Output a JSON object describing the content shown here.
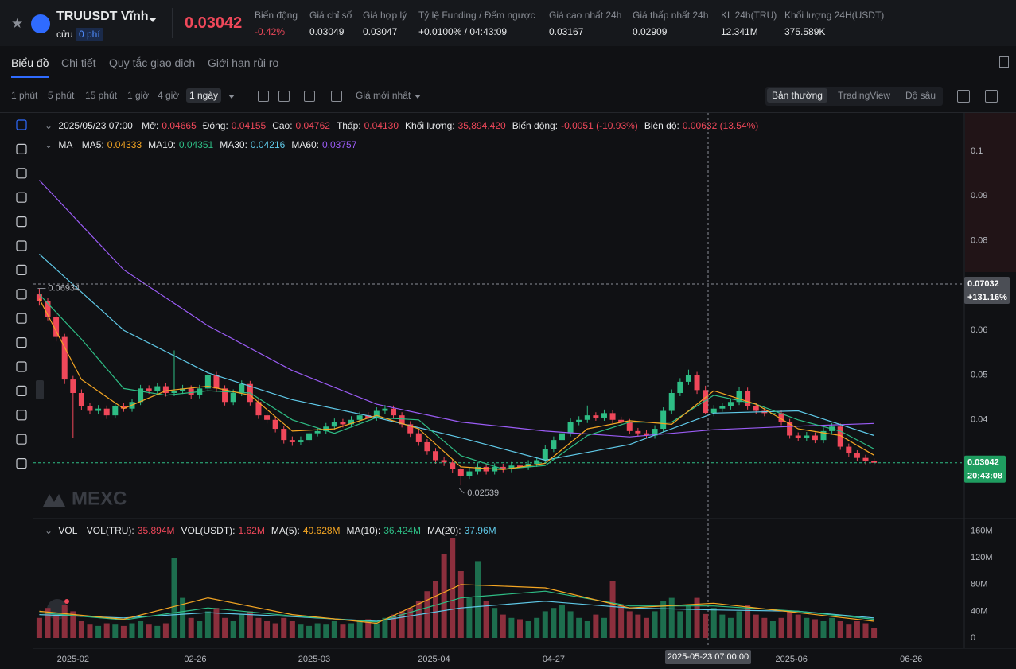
{
  "header": {
    "symbol": "TRUUSDT Vĩnh",
    "symbol_sub": "cửu",
    "fee": "0 phí",
    "price": "0.03042",
    "stats": [
      {
        "label": "Biến động",
        "value": "-0.42%"
      },
      {
        "label": "Giá chỉ số",
        "value": "0.03049"
      },
      {
        "label": "Giá hợp lý",
        "value": "0.03047"
      },
      {
        "label": "Tỷ lệ Funding / Đếm ngược",
        "value": "+0.0100% / 04:43:09"
      },
      {
        "label": "Giá cao nhất 24h",
        "value": "0.03167"
      },
      {
        "label": "Giá thấp nhất 24h",
        "value": "0.02909"
      },
      {
        "label": "KL 24h(TRU)",
        "value": "12.341M"
      },
      {
        "label": "Khối lượng 24H(USDT)",
        "value": "375.589K"
      }
    ]
  },
  "tabs": [
    "Biểu đồ",
    "Chi tiết",
    "Quy tắc giao dịch",
    "Giới hạn rủi ro"
  ],
  "intervals": [
    "1 phút",
    "5 phút",
    "15 phút",
    "1 giờ",
    "4 giờ",
    "1 ngày"
  ],
  "price_type": "Giá mới nhất",
  "views": [
    "Bản thường",
    "TradingView",
    "Độ sâu"
  ],
  "watermark": "MEXC",
  "info": {
    "date": "2025/05/23 07:00",
    "items": [
      {
        "label": "Mở:",
        "value": "0.04665"
      },
      {
        "label": "Đóng:",
        "value": "0.04155"
      },
      {
        "label": "Cao:",
        "value": "0.04762"
      },
      {
        "label": "Thấp:",
        "value": "0.04130"
      },
      {
        "label": "Khối lượng:",
        "value": "35,894,420"
      },
      {
        "label": "Biến động:",
        "value": "-0.0051 (-10.93%)"
      },
      {
        "label": "Biên độ:",
        "value": "0.00632 (13.54%)"
      }
    ]
  },
  "chart_data": [
    {
      "type": "candlestick",
      "up_color": "#2ebd85",
      "down_color": "#f0485a",
      "xlim": [
        -0.7,
        109.7
      ],
      "ylim": [
        0.0183,
        0.1085
      ],
      "yticks": [
        0.04,
        0.05,
        0.06,
        0.07,
        0.08,
        0.09,
        0.1
      ],
      "grid": false,
      "legend_title": "MA",
      "legend": [
        {
          "label": "MA5:",
          "value": "0.04333",
          "color": "#f5a623"
        },
        {
          "label": "MA10:",
          "value": "0.04351",
          "color": "#2ebd85"
        },
        {
          "label": "MA30:",
          "value": "0.04216",
          "color": "#5fc9e8"
        },
        {
          "label": "MA60:",
          "value": "0.03757",
          "color": "#9b5cf6"
        }
      ],
      "open": [
        0.068,
        0.0665,
        0.063,
        0.0585,
        0.049,
        0.046,
        0.043,
        0.042,
        0.0425,
        0.041,
        0.043,
        0.0425,
        0.044,
        0.047,
        0.0465,
        0.0475,
        0.046,
        0.0465,
        0.047,
        0.0455,
        0.047,
        0.05,
        0.047,
        0.044,
        0.046,
        0.048,
        0.044,
        0.041,
        0.04,
        0.038,
        0.0355,
        0.035,
        0.0355,
        0.037,
        0.0375,
        0.0385,
        0.0395,
        0.039,
        0.04,
        0.041,
        0.0405,
        0.042,
        0.0425,
        0.041,
        0.039,
        0.037,
        0.035,
        0.033,
        0.031,
        0.0305,
        0.029,
        0.0275,
        0.0285,
        0.0295,
        0.0285,
        0.0295,
        0.029,
        0.0298,
        0.0295,
        0.0302,
        0.031,
        0.0335,
        0.0355,
        0.037,
        0.0395,
        0.04,
        0.041,
        0.0405,
        0.0415,
        0.04,
        0.0395,
        0.0375,
        0.037,
        0.0365,
        0.038,
        0.042,
        0.046,
        0.0485,
        0.05,
        0.04665,
        0.04155,
        0.0425,
        0.043,
        0.044,
        0.0465,
        0.043,
        0.042,
        0.0415,
        0.0415,
        0.0395,
        0.0365,
        0.036,
        0.0365,
        0.0355,
        0.0375,
        0.0385,
        0.034,
        0.0325,
        0.0315,
        0.0308
      ],
      "high": [
        0.06934,
        0.0672,
        0.0638,
        0.0592,
        0.0498,
        0.0468,
        0.0438,
        0.0433,
        0.0432,
        0.0438,
        0.0437,
        0.0447,
        0.0478,
        0.0477,
        0.0483,
        0.0482,
        0.0555,
        0.0478,
        0.0477,
        0.0478,
        0.0508,
        0.0507,
        0.0477,
        0.0468,
        0.0488,
        0.0487,
        0.0447,
        0.0418,
        0.0407,
        0.0387,
        0.0363,
        0.0363,
        0.0378,
        0.0383,
        0.0393,
        0.0403,
        0.0402,
        0.0408,
        0.0418,
        0.0417,
        0.0428,
        0.0433,
        0.0432,
        0.0417,
        0.0397,
        0.0377,
        0.0357,
        0.0337,
        0.0318,
        0.0312,
        0.0297,
        0.0293,
        0.0303,
        0.0302,
        0.0303,
        0.0302,
        0.0306,
        0.0305,
        0.031,
        0.0318,
        0.0343,
        0.0363,
        0.0378,
        0.0403,
        0.0408,
        0.0432,
        0.0417,
        0.0423,
        0.0422,
        0.0407,
        0.0402,
        0.0382,
        0.0377,
        0.0388,
        0.0428,
        0.0468,
        0.0493,
        0.0512,
        0.0507,
        0.04762,
        0.0433,
        0.0438,
        0.0448,
        0.0473,
        0.0472,
        0.0437,
        0.0427,
        0.0423,
        0.0422,
        0.0402,
        0.0372,
        0.0373,
        0.0372,
        0.0383,
        0.0393,
        0.0392,
        0.0347,
        0.0332,
        0.0322,
        0.0314
      ],
      "low": [
        0.0655,
        0.0622,
        0.0575,
        0.048,
        0.036,
        0.0421,
        0.0412,
        0.0412,
        0.0402,
        0.0403,
        0.0418,
        0.0418,
        0.0433,
        0.0458,
        0.0458,
        0.0452,
        0.0453,
        0.0458,
        0.0447,
        0.0448,
        0.0463,
        0.0462,
        0.0432,
        0.0433,
        0.0453,
        0.0432,
        0.0402,
        0.0392,
        0.0372,
        0.0347,
        0.0342,
        0.0343,
        0.0348,
        0.0363,
        0.0368,
        0.0378,
        0.0383,
        0.0383,
        0.0393,
        0.0398,
        0.0398,
        0.0413,
        0.0402,
        0.0383,
        0.0362,
        0.0342,
        0.0322,
        0.0302,
        0.0297,
        0.0282,
        0.02539,
        0.0268,
        0.0278,
        0.0278,
        0.0278,
        0.0283,
        0.0283,
        0.0288,
        0.0288,
        0.0295,
        0.0303,
        0.0328,
        0.0348,
        0.0363,
        0.0388,
        0.0393,
        0.0398,
        0.0398,
        0.0392,
        0.0388,
        0.0368,
        0.0363,
        0.0358,
        0.0358,
        0.0373,
        0.0413,
        0.0453,
        0.0478,
        0.0458,
        0.0413,
        0.0408,
        0.0418,
        0.0423,
        0.0433,
        0.0423,
        0.0413,
        0.0408,
        0.0408,
        0.0388,
        0.0358,
        0.0353,
        0.0353,
        0.0348,
        0.0348,
        0.0368,
        0.0333,
        0.0318,
        0.0308,
        0.0301,
        0.0298
      ],
      "close": [
        0.0665,
        0.063,
        0.0585,
        0.049,
        0.046,
        0.043,
        0.042,
        0.0425,
        0.041,
        0.043,
        0.0425,
        0.044,
        0.047,
        0.0465,
        0.0475,
        0.046,
        0.0465,
        0.047,
        0.0455,
        0.047,
        0.05,
        0.047,
        0.044,
        0.046,
        0.048,
        0.044,
        0.041,
        0.04,
        0.038,
        0.0355,
        0.035,
        0.0355,
        0.037,
        0.0375,
        0.0385,
        0.0395,
        0.039,
        0.04,
        0.041,
        0.0405,
        0.042,
        0.0425,
        0.041,
        0.039,
        0.037,
        0.035,
        0.033,
        0.031,
        0.0305,
        0.029,
        0.0275,
        0.0285,
        0.0295,
        0.0285,
        0.0295,
        0.029,
        0.0298,
        0.0295,
        0.0302,
        0.031,
        0.0335,
        0.0355,
        0.037,
        0.0395,
        0.04,
        0.041,
        0.0405,
        0.0415,
        0.04,
        0.0395,
        0.0375,
        0.037,
        0.0365,
        0.038,
        0.042,
        0.046,
        0.0485,
        0.05,
        0.04665,
        0.04155,
        0.0425,
        0.043,
        0.044,
        0.0465,
        0.043,
        0.042,
        0.0415,
        0.0415,
        0.0395,
        0.0365,
        0.036,
        0.0365,
        0.0355,
        0.0375,
        0.0385,
        0.034,
        0.0325,
        0.0315,
        0.0308,
        0.03042
      ],
      "series": [
        {
          "color": "#9b5cf6",
          "x": [
            0,
            10,
            20,
            30,
            40,
            50,
            60,
            70,
            80,
            90,
            99
          ],
          "values": [
            0.0935,
            0.0735,
            0.061,
            0.051,
            0.0435,
            0.0395,
            0.0375,
            0.0362,
            0.0378,
            0.0386,
            0.0392
          ]
        },
        {
          "color": "#5fc9e8",
          "x": [
            0,
            10,
            20,
            30,
            40,
            50,
            60,
            70,
            80,
            90,
            99
          ],
          "values": [
            0.077,
            0.06,
            0.0505,
            0.0445,
            0.0405,
            0.036,
            0.031,
            0.0345,
            0.0415,
            0.042,
            0.0365
          ]
        },
        {
          "color": "#2ebd85",
          "x": [
            0,
            5,
            10,
            15,
            20,
            25,
            30,
            35,
            40,
            45,
            50,
            55,
            60,
            65,
            70,
            75,
            80,
            85,
            90,
            95,
            99
          ],
          "values": [
            0.068,
            0.058,
            0.047,
            0.0455,
            0.0465,
            0.046,
            0.04,
            0.037,
            0.0405,
            0.04,
            0.032,
            0.029,
            0.0298,
            0.0365,
            0.0395,
            0.0395,
            0.0455,
            0.0435,
            0.04,
            0.0375,
            0.0335
          ]
        },
        {
          "color": "#f5a623",
          "x": [
            0,
            5,
            10,
            15,
            20,
            25,
            30,
            35,
            40,
            45,
            50,
            55,
            60,
            65,
            70,
            75,
            80,
            85,
            90,
            95,
            99
          ],
          "values": [
            0.067,
            0.049,
            0.0425,
            0.0465,
            0.0475,
            0.0455,
            0.0375,
            0.038,
            0.041,
            0.038,
            0.0295,
            0.0289,
            0.0303,
            0.038,
            0.0398,
            0.039,
            0.0465,
            0.0435,
            0.038,
            0.0365,
            0.0321
          ]
        }
      ],
      "crosshair": {
        "value": 0.07032,
        "label": "0.07032",
        "change": "+131.16%",
        "date": "2025-05-23 07:00:00"
      },
      "countdown": "20:43:08"
    },
    {
      "type": "bar",
      "up_color": "#1d6e4e",
      "down_color": "#8c2f3d",
      "xlim": [
        -0.7,
        109.7
      ],
      "ylim": [
        0,
        175
      ],
      "yticks": [
        0,
        {
          "value": 40,
          "label": "40M"
        },
        {
          "value": 80,
          "label": "80M"
        },
        {
          "value": 120,
          "label": "120M"
        },
        {
          "value": 160,
          "label": "160M"
        }
      ],
      "xticks": [
        {
          "value": 4,
          "label": "2025-02"
        },
        {
          "value": 18.5,
          "label": "02-26"
        },
        {
          "value": 32.6,
          "label": "2025-03"
        },
        {
          "value": 46.8,
          "label": "2025-04"
        },
        {
          "value": 61,
          "label": "04-27"
        },
        {
          "value": 89.2,
          "label": "2025-06"
        },
        {
          "value": 103.4,
          "label": "06-26"
        }
      ],
      "legend_title": "VOL",
      "legend": [
        {
          "label": "VOL(TRU):",
          "value": "35.894M",
          "color": "#f0485a"
        },
        {
          "label": "VOL(USDT):",
          "value": "1.62M",
          "color": "#f0485a"
        },
        {
          "label": "MA(5):",
          "value": "40.628M",
          "color": "#f5a623"
        },
        {
          "label": "MA(10):",
          "value": "36.424M",
          "color": "#2ebd85"
        },
        {
          "label": "MA(20):",
          "value": "37.96M",
          "color": "#5fc9e8"
        }
      ],
      "values": [
        30,
        45,
        35,
        50,
        40,
        25,
        20,
        18,
        22,
        20,
        18,
        22,
        25,
        20,
        18,
        22,
        120,
        60,
        30,
        25,
        40,
        45,
        30,
        25,
        35,
        40,
        30,
        25,
        22,
        30,
        25,
        20,
        18,
        22,
        20,
        25,
        20,
        22,
        25,
        28,
        22,
        30,
        35,
        40,
        45,
        55,
        70,
        85,
        125,
        150,
        100,
        60,
        115,
        55,
        45,
        35,
        30,
        28,
        25,
        30,
        40,
        45,
        50,
        40,
        30,
        25,
        35,
        30,
        85,
        50,
        40,
        35,
        30,
        40,
        55,
        60,
        40,
        50,
        60,
        35.894,
        45,
        35,
        30,
        40,
        50,
        35,
        30,
        25,
        30,
        40,
        35,
        30,
        28,
        25,
        30,
        25,
        20,
        25,
        22,
        15
      ],
      "series": [
        {
          "color": "#5fc9e8",
          "x": [
            0,
            10,
            20,
            30,
            40,
            50,
            60,
            70,
            80,
            90,
            99
          ],
          "values": [
            35,
            30,
            38,
            32,
            25,
            45,
            55,
            45,
            42,
            40,
            30
          ]
        },
        {
          "color": "#2ebd85",
          "x": [
            0,
            10,
            20,
            30,
            40,
            50,
            60,
            70,
            80,
            90,
            99
          ],
          "values": [
            38,
            27,
            45,
            33,
            24,
            60,
            70,
            48,
            48,
            40,
            28
          ]
        },
        {
          "color": "#f5a623",
          "x": [
            0,
            10,
            20,
            30,
            40,
            50,
            60,
            70,
            80,
            90,
            99
          ],
          "values": [
            40,
            28,
            60,
            35,
            22,
            80,
            75,
            45,
            52,
            38,
            25
          ]
        }
      ]
    }
  ]
}
